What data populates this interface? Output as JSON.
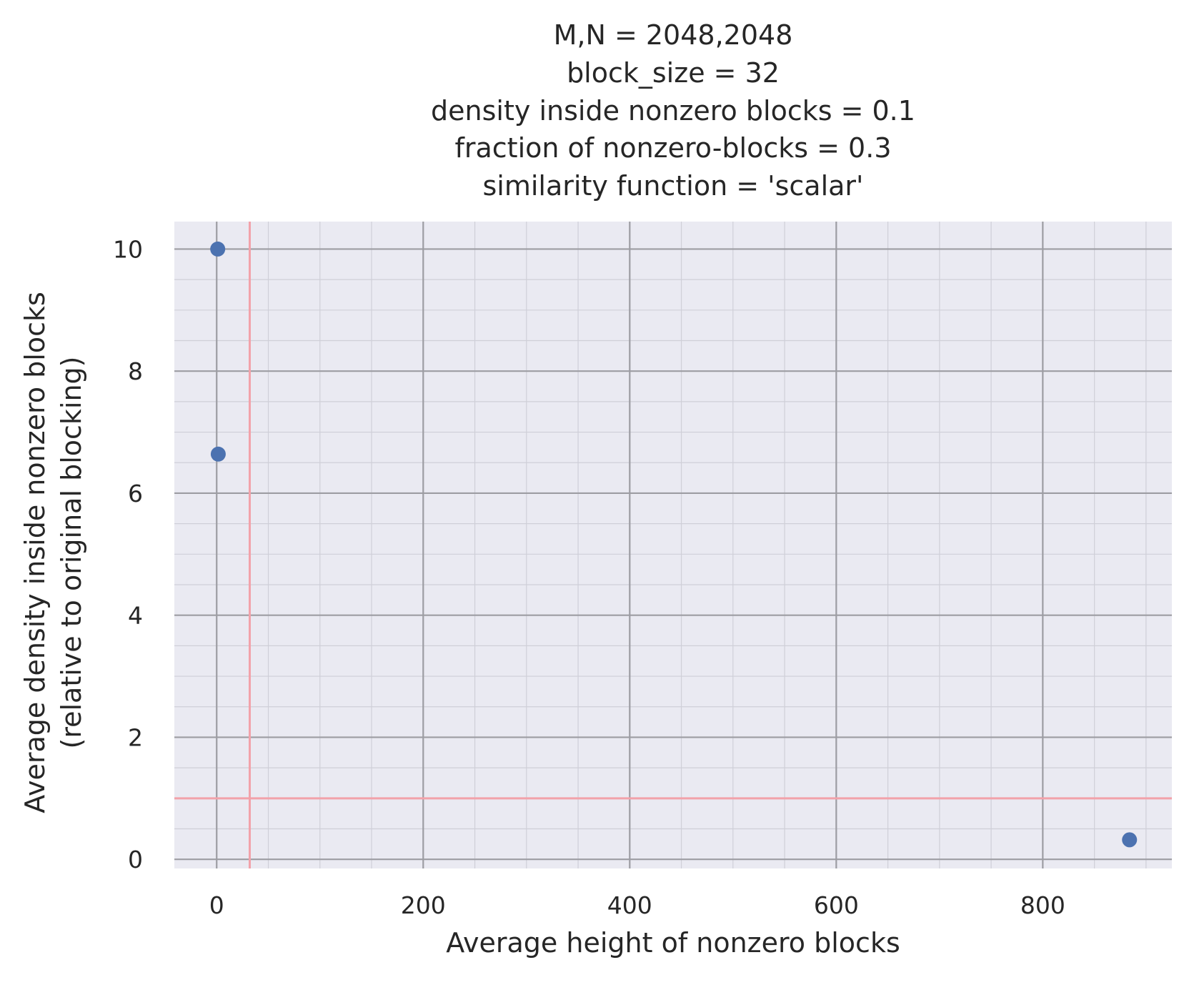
{
  "chart_data": {
    "type": "scatter",
    "title_lines": [
      "M,N = 2048,2048",
      "block_size = 32",
      "density inside nonzero blocks = 0.1",
      "fraction of nonzero-blocks = 0.3",
      "similarity function = 'scalar'"
    ],
    "xlabel": "Average height of nonzero blocks",
    "ylabel_lines": [
      "Average density inside nonzero blocks",
      "(relative to original blocking)"
    ],
    "xlim": [
      -41,
      925
    ],
    "ylim": [
      -0.15,
      10.45
    ],
    "xticks": [
      0,
      200,
      400,
      600,
      800
    ],
    "yticks": [
      0,
      2,
      4,
      6,
      8,
      10
    ],
    "x_minor_step": 50,
    "y_minor_step": 0.5,
    "grid": true,
    "reference_lines": {
      "x": 32,
      "y": 1
    },
    "points": [
      {
        "x": 1,
        "y": 10.0
      },
      {
        "x": 1.5,
        "y": 6.64
      },
      {
        "x": 884,
        "y": 0.32
      }
    ],
    "colors": {
      "point": "#4c72b0",
      "background": "#eaeaf2",
      "major_grid": "#9d9da3",
      "minor_grid": "#cfcfd8",
      "reference": "#f2a2aa"
    }
  }
}
